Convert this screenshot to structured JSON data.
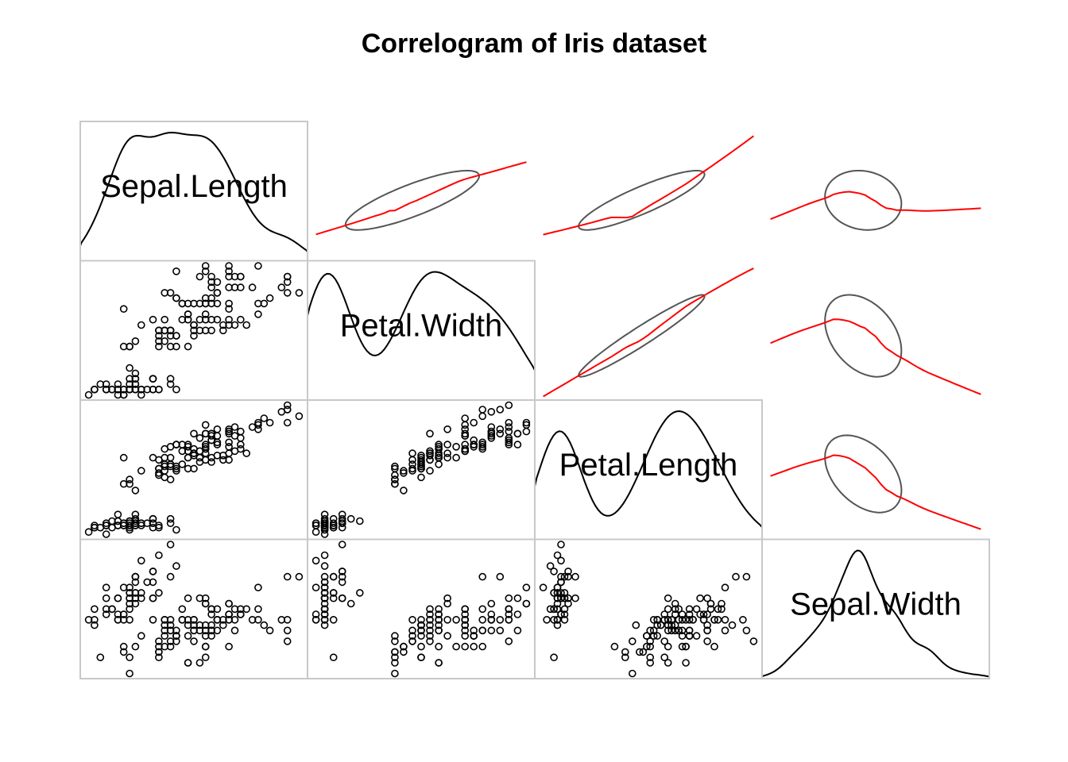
{
  "chart_data": {
    "type": "scatter",
    "title": "Correlogram of Iris dataset",
    "variables": [
      "Sepal.Length",
      "Petal.Width",
      "Petal.Length",
      "Sepal.Width"
    ],
    "lower_panel": "scatter",
    "diagonal_panel": "density",
    "upper_panel": "ellipse + loess smooth",
    "colors": {
      "points": "#000000",
      "density": "#000000",
      "ellipse": "#555555",
      "smooth": "#ff0000",
      "frame": "#c8c8c8"
    },
    "data": {
      "Sepal.Length": [
        5.1,
        4.9,
        4.7,
        4.6,
        5.0,
        5.4,
        4.6,
        5.0,
        4.4,
        4.9,
        5.4,
        4.8,
        4.8,
        4.3,
        5.8,
        5.7,
        5.4,
        5.1,
        5.7,
        5.1,
        5.4,
        5.1,
        4.6,
        5.1,
        4.8,
        5.0,
        5.0,
        5.2,
        5.2,
        4.7,
        4.8,
        5.4,
        5.2,
        5.5,
        4.9,
        5.0,
        5.5,
        4.9,
        4.4,
        5.1,
        5.0,
        4.5,
        4.4,
        5.0,
        5.1,
        4.8,
        5.1,
        4.6,
        5.3,
        5.0,
        7.0,
        6.4,
        6.9,
        5.5,
        6.5,
        5.7,
        6.3,
        4.9,
        6.6,
        5.2,
        5.0,
        5.9,
        6.0,
        6.1,
        5.6,
        6.7,
        5.6,
        5.8,
        6.2,
        5.6,
        5.9,
        6.1,
        6.3,
        6.1,
        6.4,
        6.6,
        6.8,
        6.7,
        6.0,
        5.7,
        5.5,
        5.5,
        5.8,
        6.0,
        5.4,
        6.0,
        6.7,
        6.3,
        5.6,
        5.5,
        5.5,
        6.1,
        5.8,
        5.0,
        5.6,
        5.7,
        5.7,
        6.2,
        5.1,
        5.7,
        6.3,
        5.8,
        7.1,
        6.3,
        6.5,
        7.6,
        4.9,
        7.3,
        6.7,
        7.2,
        6.5,
        6.4,
        6.8,
        5.7,
        5.8,
        6.4,
        6.5,
        7.7,
        7.7,
        6.0,
        6.9,
        5.6,
        7.7,
        6.3,
        6.7,
        7.2,
        6.2,
        6.1,
        6.4,
        7.2,
        7.4,
        7.9,
        6.4,
        6.3,
        6.1,
        7.7,
        6.3,
        6.4,
        6.0,
        6.9,
        6.7,
        6.9,
        5.8,
        6.8,
        6.7,
        6.7,
        6.3,
        6.5,
        6.2,
        5.9
      ],
      "Sepal.Width": [
        3.5,
        3.0,
        3.2,
        3.1,
        3.6,
        3.9,
        3.4,
        3.4,
        2.9,
        3.1,
        3.7,
        3.4,
        3.0,
        3.0,
        4.0,
        4.4,
        3.9,
        3.5,
        3.8,
        3.8,
        3.4,
        3.7,
        3.6,
        3.3,
        3.4,
        3.0,
        3.4,
        3.5,
        3.4,
        3.2,
        3.1,
        3.4,
        4.1,
        4.2,
        3.1,
        3.2,
        3.5,
        3.6,
        3.0,
        3.4,
        3.5,
        2.3,
        3.2,
        3.5,
        3.8,
        3.0,
        3.8,
        3.2,
        3.7,
        3.3,
        3.2,
        3.2,
        3.1,
        2.3,
        2.8,
        2.8,
        3.3,
        2.4,
        2.9,
        2.7,
        2.0,
        3.0,
        2.2,
        2.9,
        2.9,
        3.1,
        3.0,
        2.7,
        2.2,
        2.5,
        3.2,
        2.8,
        2.5,
        2.8,
        2.9,
        3.0,
        2.8,
        3.0,
        2.9,
        2.6,
        2.4,
        2.4,
        2.7,
        2.7,
        3.0,
        3.4,
        3.1,
        2.3,
        3.0,
        2.5,
        2.6,
        3.0,
        2.6,
        2.3,
        2.7,
        3.0,
        2.9,
        2.9,
        2.5,
        2.8,
        3.3,
        2.7,
        3.0,
        2.9,
        3.0,
        3.0,
        2.5,
        2.9,
        2.5,
        3.6,
        3.2,
        2.7,
        3.0,
        2.5,
        2.8,
        3.2,
        3.0,
        3.8,
        2.6,
        2.2,
        3.2,
        2.8,
        2.8,
        2.7,
        3.3,
        3.2,
        2.8,
        3.0,
        2.8,
        3.0,
        2.8,
        3.8,
        2.8,
        2.8,
        2.6,
        3.0,
        3.4,
        3.1,
        3.0,
        3.1,
        3.1,
        3.1,
        2.7,
        3.2,
        3.3,
        3.0,
        2.5,
        3.0,
        3.4,
        3.0
      ],
      "Petal.Length": [
        1.4,
        1.4,
        1.3,
        1.5,
        1.4,
        1.7,
        1.4,
        1.5,
        1.4,
        1.5,
        1.5,
        1.6,
        1.4,
        1.1,
        1.2,
        1.5,
        1.3,
        1.4,
        1.7,
        1.5,
        1.7,
        1.5,
        1.0,
        1.7,
        1.9,
        1.6,
        1.6,
        1.5,
        1.4,
        1.6,
        1.6,
        1.5,
        1.5,
        1.4,
        1.5,
        1.2,
        1.3,
        1.4,
        1.3,
        1.5,
        1.3,
        1.3,
        1.3,
        1.6,
        1.9,
        1.4,
        1.6,
        1.4,
        1.5,
        1.4,
        4.7,
        4.5,
        4.9,
        4.0,
        4.6,
        4.5,
        4.7,
        3.3,
        4.6,
        3.9,
        3.5,
        4.2,
        4.0,
        4.7,
        3.6,
        4.4,
        4.5,
        4.1,
        4.5,
        3.9,
        4.8,
        4.0,
        4.9,
        4.7,
        4.3,
        4.4,
        4.8,
        5.0,
        4.5,
        3.5,
        3.8,
        3.7,
        3.9,
        5.1,
        4.5,
        4.5,
        4.7,
        4.4,
        4.1,
        4.0,
        4.4,
        4.6,
        4.0,
        3.3,
        4.2,
        4.2,
        4.2,
        4.3,
        3.0,
        4.1,
        6.0,
        5.1,
        5.9,
        5.6,
        5.8,
        6.6,
        4.5,
        6.3,
        5.8,
        6.1,
        5.1,
        5.3,
        5.5,
        5.0,
        5.1,
        5.3,
        5.5,
        6.7,
        6.9,
        5.0,
        5.7,
        4.9,
        6.7,
        4.9,
        5.7,
        6.0,
        4.8,
        4.9,
        5.6,
        5.8,
        6.1,
        6.4,
        5.6,
        5.1,
        5.6,
        6.1,
        5.6,
        5.5,
        4.8,
        5.4,
        5.6,
        5.1,
        5.1,
        5.9,
        5.7,
        5.2,
        5.0,
        5.2,
        5.4,
        5.1
      ],
      "Petal.Width": [
        0.2,
        0.2,
        0.2,
        0.2,
        0.2,
        0.4,
        0.3,
        0.2,
        0.2,
        0.1,
        0.2,
        0.2,
        0.1,
        0.1,
        0.2,
        0.4,
        0.4,
        0.3,
        0.3,
        0.3,
        0.2,
        0.4,
        0.2,
        0.5,
        0.2,
        0.2,
        0.4,
        0.2,
        0.2,
        0.2,
        0.2,
        0.4,
        0.1,
        0.2,
        0.2,
        0.2,
        0.2,
        0.1,
        0.2,
        0.2,
        0.3,
        0.3,
        0.2,
        0.6,
        0.4,
        0.3,
        0.2,
        0.2,
        0.2,
        0.2,
        1.4,
        1.5,
        1.5,
        1.3,
        1.5,
        1.3,
        1.6,
        1.0,
        1.3,
        1.4,
        1.0,
        1.5,
        1.0,
        1.4,
        1.3,
        1.4,
        1.5,
        1.0,
        1.5,
        1.1,
        1.8,
        1.3,
        1.5,
        1.2,
        1.3,
        1.4,
        1.4,
        1.7,
        1.5,
        1.0,
        1.1,
        1.0,
        1.2,
        1.6,
        1.5,
        1.6,
        1.5,
        1.3,
        1.3,
        1.3,
        1.2,
        1.4,
        1.2,
        1.0,
        1.3,
        1.2,
        1.3,
        1.3,
        1.1,
        1.3,
        2.5,
        1.9,
        2.1,
        1.8,
        2.2,
        2.1,
        1.7,
        1.8,
        1.8,
        2.5,
        2.0,
        1.9,
        2.1,
        2.0,
        2.4,
        2.3,
        1.8,
        2.2,
        2.3,
        1.5,
        2.3,
        2.0,
        2.0,
        1.8,
        2.1,
        1.8,
        1.8,
        1.8,
        2.1,
        1.6,
        1.9,
        2.0,
        2.2,
        1.5,
        1.4,
        2.3,
        2.4,
        1.8,
        1.8,
        2.1,
        2.4,
        2.3,
        1.9,
        2.3,
        2.5,
        2.3,
        1.9,
        2.0,
        2.3,
        1.8
      ]
    }
  }
}
